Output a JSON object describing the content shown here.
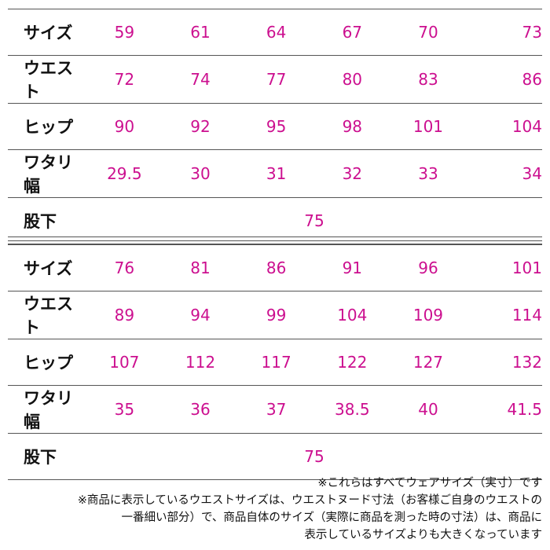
{
  "colors": {
    "value": "#cc0f8f",
    "label": "#111111",
    "rule": "#555555"
  },
  "table_1": {
    "rows": [
      {
        "label": "サイズ",
        "values": [
          "59",
          "61",
          "64",
          "67",
          "70",
          "73"
        ]
      },
      {
        "label": "ウエスト",
        "values": [
          "72",
          "74",
          "77",
          "80",
          "83",
          "86"
        ]
      },
      {
        "label": "ヒップ",
        "values": [
          "90",
          "92",
          "95",
          "98",
          "101",
          "104"
        ]
      },
      {
        "label": "ワタリ幅",
        "values": [
          "29.5",
          "30",
          "31",
          "32",
          "33",
          "34"
        ]
      }
    ],
    "inseam": {
      "label": "股下",
      "value": "75"
    }
  },
  "table_2": {
    "rows": [
      {
        "label": "サイズ",
        "values": [
          "76",
          "81",
          "86",
          "91",
          "96",
          "101"
        ]
      },
      {
        "label": "ウエスト",
        "values": [
          "89",
          "94",
          "99",
          "104",
          "109",
          "114"
        ]
      },
      {
        "label": "ヒップ",
        "values": [
          "107",
          "112",
          "117",
          "122",
          "127",
          "132"
        ]
      },
      {
        "label": "ワタリ幅",
        "values": [
          "35",
          "36",
          "37",
          "38.5",
          "40",
          "41.5"
        ]
      }
    ],
    "inseam": {
      "label": "股下",
      "value": "75"
    }
  },
  "notes": [
    "※これらはすべてウェアサイズ（実寸）です",
    "※商品に表示しているウエストサイズは、ウエストヌード寸法（お客様ご自身のウエストの",
    "一番細い部分）で、商品自体のサイズ（実際に商品を測った時の寸法）は、商品に",
    "表示しているサイズよりも大きくなっています"
  ]
}
